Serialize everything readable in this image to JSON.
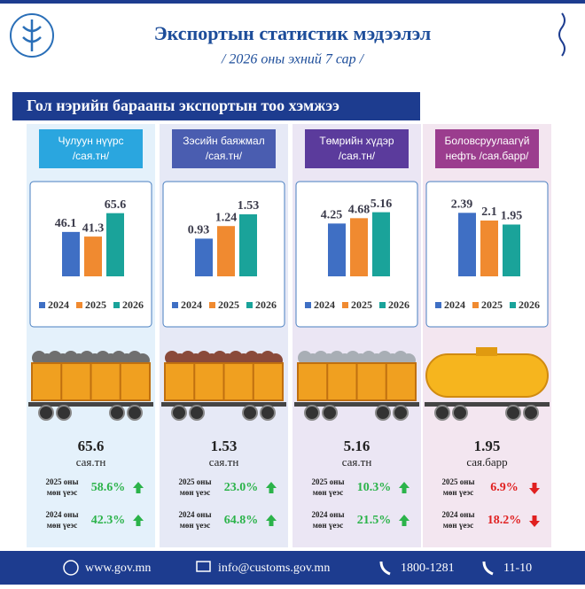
{
  "header": {
    "title": "Экспортын статистик мэдээлэл",
    "subtitle": "/ 2026 оны эхний 7 сар /"
  },
  "section_title": "Гол нэрийн барааны экспортын тоо хэмжээ",
  "chart_data": [
    {
      "type": "bar",
      "label_lines": [
        "Чулуун нүүрс",
        "/сая.тн/"
      ],
      "categories": [
        "2024",
        "2025",
        "2026"
      ],
      "values": [
        46.1,
        41.3,
        65.6
      ],
      "colors": [
        "#3f6fc4",
        "#f08a30",
        "#1aa39a"
      ],
      "ylim": [
        0,
        80
      ],
      "unit": "сая.тн",
      "changes": [
        {
          "label_lines": [
            "2025 оны",
            "мөн үеэс"
          ],
          "value": "58.6%",
          "direction": "up"
        },
        {
          "label_lines": [
            "2024 оны",
            "мөн үеэс"
          ],
          "value": "42.3%",
          "direction": "up"
        }
      ]
    },
    {
      "type": "bar",
      "label_lines": [
        "Зэсийн баяжмал",
        "/сая.тн/"
      ],
      "categories": [
        "2024",
        "2025",
        "2026"
      ],
      "values": [
        0.93,
        1.24,
        1.53
      ],
      "colors": [
        "#3f6fc4",
        "#f08a30",
        "#1aa39a"
      ],
      "ylim": [
        0,
        1.9
      ],
      "unit": "сая.тн",
      "changes": [
        {
          "label_lines": [
            "2025 оны",
            "мөн үеэс"
          ],
          "value": "23.0%",
          "direction": "up"
        },
        {
          "label_lines": [
            "2024 оны",
            "мөн үеэс"
          ],
          "value": "64.8%",
          "direction": "up"
        }
      ]
    },
    {
      "type": "bar",
      "label_lines": [
        "Төмрийн хүдэр",
        "/сая.тн/"
      ],
      "categories": [
        "2024",
        "2025",
        "2026"
      ],
      "values": [
        4.25,
        4.68,
        5.16
      ],
      "colors": [
        "#3f6fc4",
        "#f08a30",
        "#1aa39a"
      ],
      "ylim": [
        0,
        6.2
      ],
      "unit": "сая.тн",
      "changes": [
        {
          "label_lines": [
            "2025 оны",
            "мөн үеэс"
          ],
          "value": "10.3%",
          "direction": "up"
        },
        {
          "label_lines": [
            "2024 оны",
            "мөн үеэс"
          ],
          "value": "21.5%",
          "direction": "up"
        }
      ]
    },
    {
      "type": "bar",
      "label_lines": [
        "Боловсруулаагүй",
        "нефть /сая.барр/"
      ],
      "categories": [
        "2024",
        "2025",
        "2026"
      ],
      "values": [
        2.39,
        2.1,
        1.95
      ],
      "colors": [
        "#3f6fc4",
        "#f08a30",
        "#1aa39a"
      ],
      "ylim": [
        0,
        2.9
      ],
      "unit": "сая.барр",
      "changes": [
        {
          "label_lines": [
            "2025 оны",
            "мөн үеэс"
          ],
          "value": "6.9%",
          "direction": "down"
        },
        {
          "label_lines": [
            "2024 оны",
            "мөн үеэс"
          ],
          "value": "18.2%",
          "direction": "down"
        }
      ]
    }
  ],
  "footer": {
    "web": "www.gov.mn",
    "email": "info@customs.gov.mn",
    "phone": "1800-1281",
    "hotline": "11-10"
  }
}
